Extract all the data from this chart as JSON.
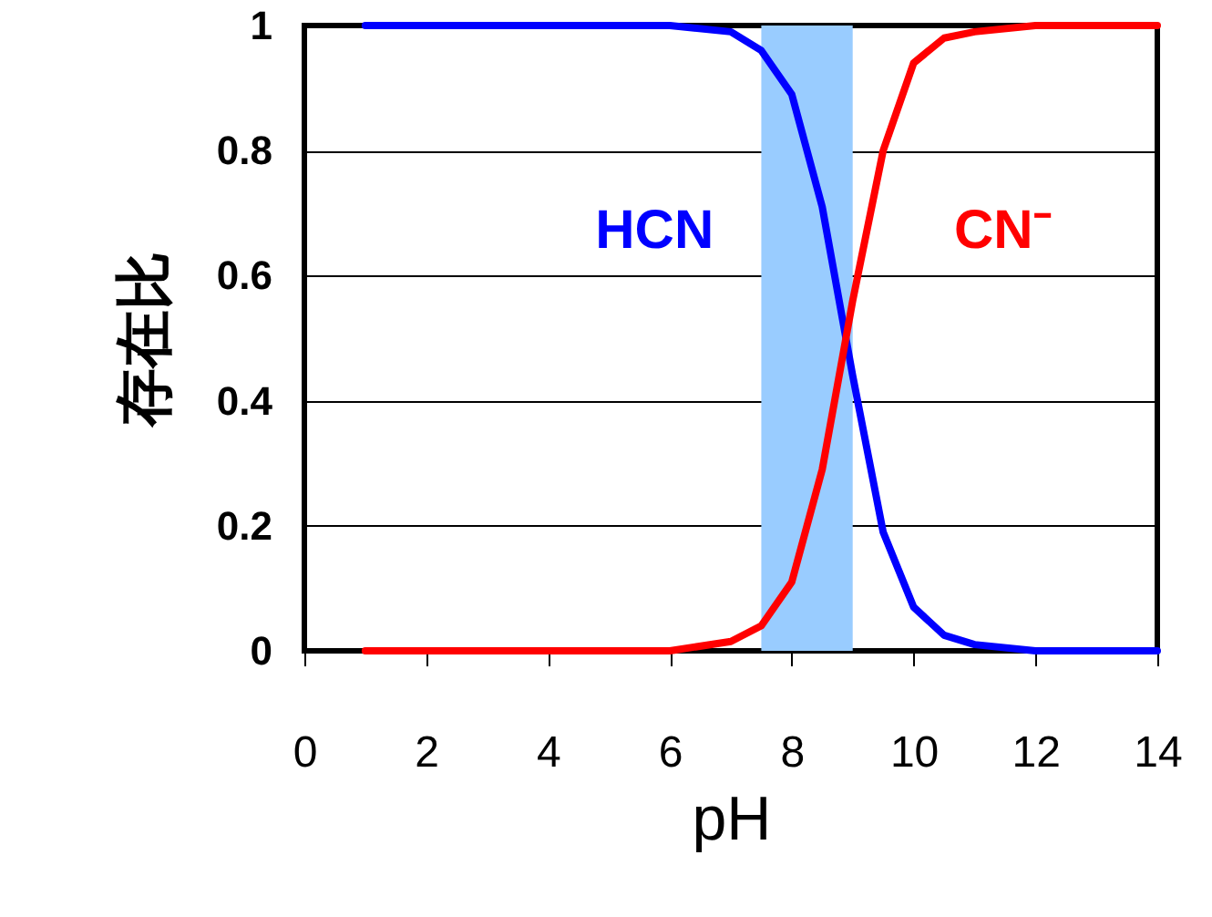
{
  "chart_data": {
    "type": "line",
    "xlabel": "pH",
    "ylabel": "存在比",
    "x": [
      1,
      2,
      3,
      4,
      5,
      6,
      7,
      7.5,
      8,
      8.5,
      9,
      9.5,
      10,
      10.5,
      11,
      12,
      13,
      14
    ],
    "series": [
      {
        "name": "HCN",
        "color": "#0000ff",
        "values": [
          1,
          1,
          1,
          1,
          1,
          1,
          0.99,
          0.96,
          0.89,
          0.71,
          0.44,
          0.19,
          0.07,
          0.025,
          0.01,
          0,
          0,
          0
        ]
      },
      {
        "name": "CN⁻",
        "color": "#ff0000",
        "values": [
          0,
          0,
          0,
          0,
          0,
          0,
          0.015,
          0.04,
          0.11,
          0.29,
          0.56,
          0.8,
          0.94,
          0.98,
          0.99,
          1,
          1,
          1
        ]
      }
    ],
    "xlim": [
      0,
      14
    ],
    "xticks": [
      0,
      2,
      4,
      6,
      8,
      10,
      12,
      14
    ],
    "ylim": [
      0,
      1
    ],
    "yticks": [
      0,
      0.2,
      0.4,
      0.6,
      0.8,
      1
    ],
    "grid": "y",
    "bands": [
      {
        "axis": "x",
        "from": 7.5,
        "to": 9,
        "color": "#99ccff"
      }
    ]
  }
}
